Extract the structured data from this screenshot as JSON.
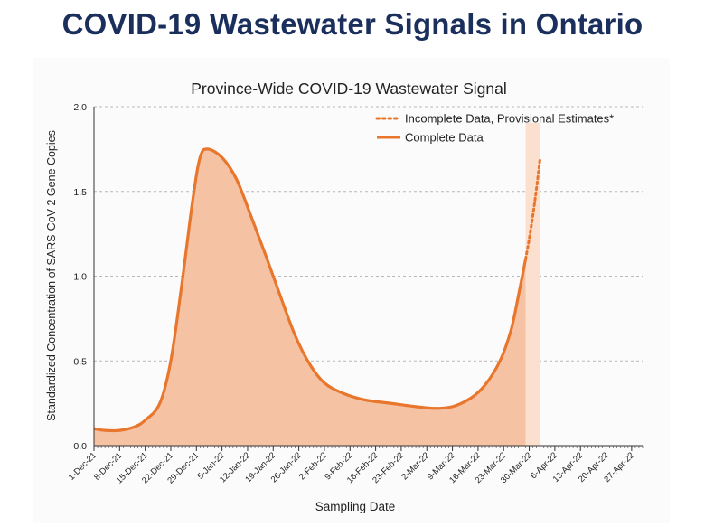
{
  "page": {
    "title": "COVID-19 Wastewater Signals in Ontario"
  },
  "colors": {
    "title": "#1b2f5c",
    "line": "#e8762d",
    "area": "#f5c3a4",
    "area_incomplete": "#fbe0cf",
    "grid": "#b8b8b8"
  },
  "chart_data": {
    "type": "area",
    "title": "Province-Wide COVID-19 Wastewater Signal",
    "xlabel": "Sampling Date",
    "ylabel": "Standardized Concentration of SARS-CoV-2 Gene Copies",
    "ylim": [
      0,
      2.0
    ],
    "y_ticks": [
      "0.0",
      "0.5",
      "1.0",
      "1.5",
      "2.0"
    ],
    "x_ticks": [
      "1-Dec-21",
      "8-Dec-21",
      "15-Dec-21",
      "22-Dec-21",
      "29-Dec-21",
      "5-Jan-22",
      "12-Jan-22",
      "19-Jan-22",
      "26-Jan-22",
      "2-Feb-22",
      "9-Feb-22",
      "16-Feb-22",
      "23-Feb-22",
      "2-Mar-22",
      "9-Mar-22",
      "16-Mar-22",
      "23-Mar-22",
      "30-Mar-22",
      "6-Apr-22",
      "13-Apr-22",
      "20-Apr-22",
      "27-Apr-22"
    ],
    "xlim": [
      "2021-12-01",
      "2022-04-30"
    ],
    "grid": "horizontal dashed",
    "legend_position": "top-right",
    "series": [
      {
        "name": "Complete Data",
        "style": "solid",
        "points": [
          {
            "x": "2021-12-01",
            "y": 0.1
          },
          {
            "x": "2021-12-04",
            "y": 0.09
          },
          {
            "x": "2021-12-08",
            "y": 0.09
          },
          {
            "x": "2021-12-12",
            "y": 0.11
          },
          {
            "x": "2021-12-15",
            "y": 0.15
          },
          {
            "x": "2021-12-19",
            "y": 0.25
          },
          {
            "x": "2021-12-22",
            "y": 0.5
          },
          {
            "x": "2021-12-25",
            "y": 0.95
          },
          {
            "x": "2021-12-28",
            "y": 1.45
          },
          {
            "x": "2021-12-30",
            "y": 1.7
          },
          {
            "x": "2022-01-01",
            "y": 1.75
          },
          {
            "x": "2022-01-05",
            "y": 1.7
          },
          {
            "x": "2022-01-09",
            "y": 1.57
          },
          {
            "x": "2022-01-13",
            "y": 1.35
          },
          {
            "x": "2022-01-17",
            "y": 1.12
          },
          {
            "x": "2022-01-21",
            "y": 0.88
          },
          {
            "x": "2022-01-25",
            "y": 0.65
          },
          {
            "x": "2022-01-29",
            "y": 0.48
          },
          {
            "x": "2022-02-02",
            "y": 0.37
          },
          {
            "x": "2022-02-07",
            "y": 0.31
          },
          {
            "x": "2022-02-13",
            "y": 0.27
          },
          {
            "x": "2022-02-20",
            "y": 0.25
          },
          {
            "x": "2022-02-27",
            "y": 0.23
          },
          {
            "x": "2022-03-04",
            "y": 0.22
          },
          {
            "x": "2022-03-09",
            "y": 0.23
          },
          {
            "x": "2022-03-14",
            "y": 0.28
          },
          {
            "x": "2022-03-18",
            "y": 0.36
          },
          {
            "x": "2022-03-22",
            "y": 0.5
          },
          {
            "x": "2022-03-25",
            "y": 0.68
          },
          {
            "x": "2022-03-27",
            "y": 0.88
          },
          {
            "x": "2022-03-29",
            "y": 1.1
          }
        ]
      },
      {
        "name": "Incomplete Data, Provisional Estimates*",
        "style": "dotted",
        "points": [
          {
            "x": "2022-03-29",
            "y": 1.1
          },
          {
            "x": "2022-03-30",
            "y": 1.22
          },
          {
            "x": "2022-03-31",
            "y": 1.36
          },
          {
            "x": "2022-04-01",
            "y": 1.52
          },
          {
            "x": "2022-04-02",
            "y": 1.7
          }
        ]
      }
    ]
  }
}
